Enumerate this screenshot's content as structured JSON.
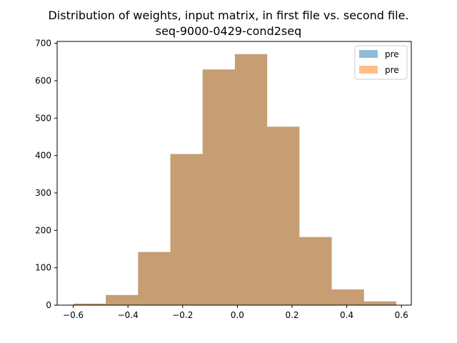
{
  "chart_data": {
    "type": "histogram",
    "title": "Distribution of weights, input matrix, in first file vs. second file.",
    "subtitle": "seq-9000-0429-cond2seq",
    "xlabel": "",
    "ylabel": "",
    "xlim": [
      -0.659,
      0.636
    ],
    "ylim": [
      0,
      705
    ],
    "grid": false,
    "legend_position": "top-right",
    "bin_edges": [
      -0.599,
      -0.481,
      -0.363,
      -0.245,
      -0.127,
      -0.009,
      0.109,
      0.227,
      0.345,
      0.463,
      0.581
    ],
    "series": [
      {
        "name": "pre",
        "color": "#1f77b4",
        "alpha": 0.5,
        "values": [
          4,
          27,
          142,
          404,
          630,
          671,
          477,
          182,
          42,
          10
        ]
      },
      {
        "name": "pre",
        "color": "#ff7f0e",
        "alpha": 0.5,
        "values": [
          4,
          27,
          142,
          404,
          630,
          671,
          477,
          182,
          42,
          10
        ]
      }
    ],
    "xticks": [
      -0.6,
      -0.4,
      -0.2,
      0.0,
      0.2,
      0.4,
      0.6
    ],
    "xtick_labels": [
      "−0.6",
      "−0.4",
      "−0.2",
      "0.0",
      "0.2",
      "0.4",
      "0.6"
    ],
    "yticks": [
      0,
      100,
      200,
      300,
      400,
      500,
      600,
      700
    ],
    "ytick_labels": [
      "0",
      "100",
      "200",
      "300",
      "400",
      "500",
      "600",
      "700"
    ]
  }
}
